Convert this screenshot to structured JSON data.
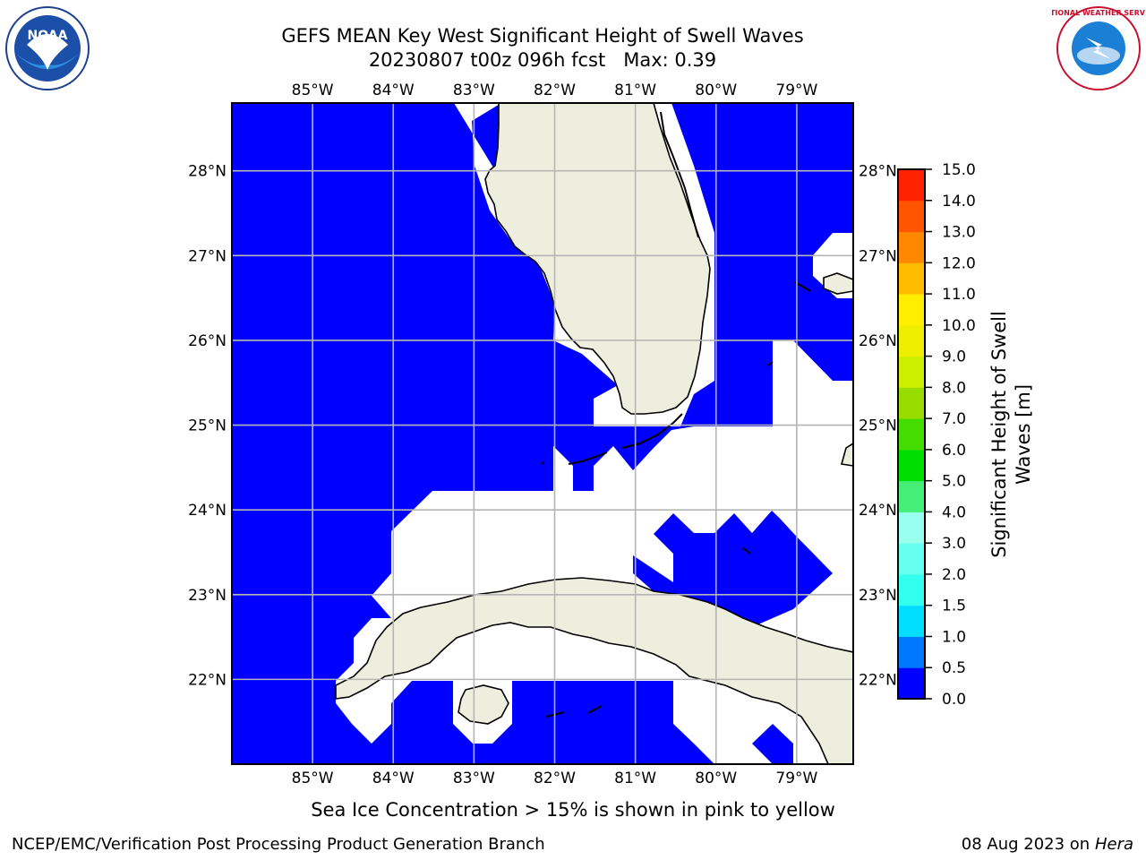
{
  "header": {
    "title_line1": "GEFS MEAN Key West Significant Height of Swell Waves",
    "title_line2": "20230807 t00z 096h fcst   Max: 0.39"
  },
  "logos": {
    "left": "noaa-logo",
    "right": "national-weather-service-logo",
    "right_text": "NATIONAL WEATHER SERVICE"
  },
  "map": {
    "lon_ticks": [
      "85°W",
      "84°W",
      "83°W",
      "82°W",
      "81°W",
      "80°W",
      "79°W"
    ],
    "lat_ticks": [
      "28°N",
      "27°N",
      "26°N",
      "25°N",
      "24°N",
      "23°N",
      "22°N"
    ],
    "lon_range": [
      -86.0,
      -78.3
    ],
    "lat_range": [
      21.0,
      28.8
    ],
    "colors": {
      "ocean_field": "#0000ff",
      "land": "#eeeede",
      "no_data": "#ffffff",
      "grid": "#b5b5b5"
    }
  },
  "colorbar": {
    "label_line1": "Significant Height of Swell",
    "label_line2": "Waves [m]",
    "ticks": [
      "0.0",
      "0.5",
      "1.0",
      "1.5",
      "2.0",
      "3.0",
      "4.0",
      "5.0",
      "6.0",
      "7.0",
      "8.0",
      "9.0",
      "10.0",
      "11.0",
      "12.0",
      "13.0",
      "14.0",
      "15.0"
    ],
    "colors": [
      "#0000ff",
      "#0077ff",
      "#00ddff",
      "#33ffee",
      "#66ffee",
      "#99ffee",
      "#44ee77",
      "#00dd00",
      "#44dd00",
      "#99dd00",
      "#ccee00",
      "#eeee00",
      "#ffee00",
      "#ffbb00",
      "#ff8800",
      "#ff5500",
      "#ff2200",
      "#ff0000"
    ]
  },
  "footer": {
    "note": "Sea Ice Concentration > 15% is shown in pink to yellow",
    "credit_left": "NCEP/EMC/Verification Post Processing Product Generation Branch",
    "credit_right_date": "08 Aug 2023 on",
    "credit_right_host": "Hera"
  }
}
